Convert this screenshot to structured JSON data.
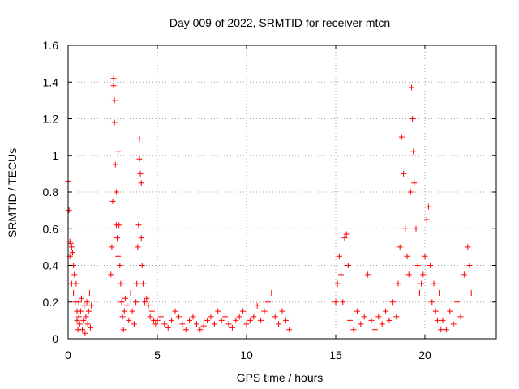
{
  "chart_data": {
    "type": "scatter",
    "title": "Day 009 of 2022, SRMTID for receiver mtcn",
    "xlabel": "GPS time / hours",
    "ylabel": "SRMTID / TECUs",
    "xlim": [
      0,
      24
    ],
    "ylim": [
      0,
      1.6
    ],
    "x_ticks": [
      0,
      5,
      10,
      15,
      20
    ],
    "x_tick_labels": [
      "0",
      "5",
      "10",
      "15",
      "20"
    ],
    "y_ticks": [
      0,
      0.2,
      0.4,
      0.6,
      0.8,
      1.0,
      1.2,
      1.4,
      1.6
    ],
    "y_tick_labels": [
      "0",
      "0.2",
      "0.4",
      "0.6",
      "0.8",
      "1",
      "1.2",
      "1.4",
      "1.6"
    ],
    "grid": true,
    "marker": "+",
    "series": [
      {
        "name": "SRMTID",
        "color": "#ff0000",
        "x": [
          0.0,
          0.05,
          0.1,
          0.1,
          0.15,
          0.2,
          0.2,
          0.25,
          0.3,
          0.3,
          0.35,
          0.4,
          0.45,
          0.5,
          0.5,
          0.55,
          0.6,
          0.6,
          0.65,
          0.7,
          0.75,
          0.8,
          0.85,
          0.9,
          0.95,
          1.0,
          1.05,
          1.1,
          1.15,
          1.2,
          1.25,
          1.3,
          2.4,
          2.45,
          2.5,
          2.55,
          2.55,
          2.6,
          2.6,
          2.65,
          2.7,
          2.7,
          2.75,
          2.8,
          2.8,
          2.85,
          2.9,
          2.95,
          3.0,
          3.05,
          3.1,
          3.15,
          3.2,
          3.3,
          3.4,
          3.5,
          3.6,
          3.7,
          3.8,
          3.85,
          3.9,
          3.95,
          4.0,
          4.0,
          4.05,
          4.1,
          4.1,
          4.15,
          4.2,
          4.25,
          4.3,
          4.4,
          4.5,
          4.6,
          4.7,
          4.8,
          4.9,
          5.0,
          5.2,
          5.4,
          5.6,
          5.8,
          6.0,
          6.2,
          6.4,
          6.6,
          6.8,
          7.0,
          7.2,
          7.4,
          7.6,
          7.8,
          8.0,
          8.2,
          8.4,
          8.6,
          8.8,
          9.0,
          9.2,
          9.4,
          9.6,
          9.8,
          10.0,
          10.2,
          10.4,
          10.6,
          10.8,
          11.0,
          11.2,
          11.4,
          11.6,
          11.8,
          12.0,
          12.2,
          12.4,
          15.0,
          15.1,
          15.2,
          15.3,
          15.4,
          15.5,
          15.6,
          15.7,
          15.8,
          16.0,
          16.2,
          16.4,
          16.6,
          16.8,
          17.0,
          17.2,
          17.4,
          17.6,
          17.8,
          18.0,
          18.2,
          18.4,
          18.5,
          18.6,
          18.7,
          18.8,
          18.9,
          19.0,
          19.1,
          19.2,
          19.25,
          19.3,
          19.35,
          19.4,
          19.5,
          19.6,
          19.7,
          19.8,
          19.9,
          20.0,
          20.1,
          20.2,
          20.3,
          20.4,
          20.5,
          20.6,
          20.7,
          20.8,
          20.9,
          21.0,
          21.2,
          21.4,
          21.6,
          21.8,
          22.0,
          22.2,
          22.4,
          22.5,
          22.6
        ],
        "y": [
          0.86,
          0.7,
          0.45,
          0.53,
          0.52,
          0.5,
          0.3,
          0.47,
          0.4,
          0.25,
          0.35,
          0.2,
          0.3,
          0.1,
          0.15,
          0.05,
          0.2,
          0.12,
          0.08,
          0.15,
          0.22,
          0.05,
          0.1,
          0.18,
          0.03,
          0.12,
          0.2,
          0.08,
          0.15,
          0.25,
          0.06,
          0.18,
          0.35,
          0.5,
          0.75,
          1.42,
          1.38,
          1.3,
          1.18,
          0.95,
          0.62,
          0.8,
          0.55,
          0.45,
          1.02,
          0.62,
          0.4,
          0.3,
          0.2,
          0.12,
          0.05,
          0.15,
          0.22,
          0.18,
          0.1,
          0.25,
          0.15,
          0.08,
          0.2,
          0.3,
          0.5,
          0.62,
          1.09,
          0.98,
          0.9,
          0.85,
          0.55,
          0.4,
          0.3,
          0.25,
          0.2,
          0.22,
          0.18,
          0.12,
          0.15,
          0.1,
          0.08,
          0.1,
          0.12,
          0.08,
          0.06,
          0.1,
          0.15,
          0.12,
          0.08,
          0.05,
          0.1,
          0.12,
          0.08,
          0.05,
          0.07,
          0.1,
          0.12,
          0.08,
          0.15,
          0.1,
          0.12,
          0.08,
          0.06,
          0.1,
          0.12,
          0.15,
          0.08,
          0.1,
          0.12,
          0.18,
          0.1,
          0.15,
          0.2,
          0.25,
          0.12,
          0.08,
          0.15,
          0.1,
          0.05,
          0.2,
          0.3,
          0.45,
          0.35,
          0.2,
          0.55,
          0.57,
          0.4,
          0.1,
          0.05,
          0.15,
          0.08,
          0.12,
          0.35,
          0.1,
          0.05,
          0.12,
          0.08,
          0.15,
          0.1,
          0.2,
          0.12,
          0.3,
          0.5,
          1.1,
          0.9,
          0.6,
          0.45,
          0.35,
          0.8,
          1.37,
          1.2,
          1.02,
          0.85,
          0.6,
          0.4,
          0.25,
          0.3,
          0.35,
          0.45,
          0.65,
          0.72,
          0.4,
          0.2,
          0.3,
          0.15,
          0.1,
          0.25,
          0.05,
          0.1,
          0.05,
          0.15,
          0.08,
          0.2,
          0.12,
          0.35,
          0.5,
          0.4,
          0.25
        ]
      }
    ]
  }
}
